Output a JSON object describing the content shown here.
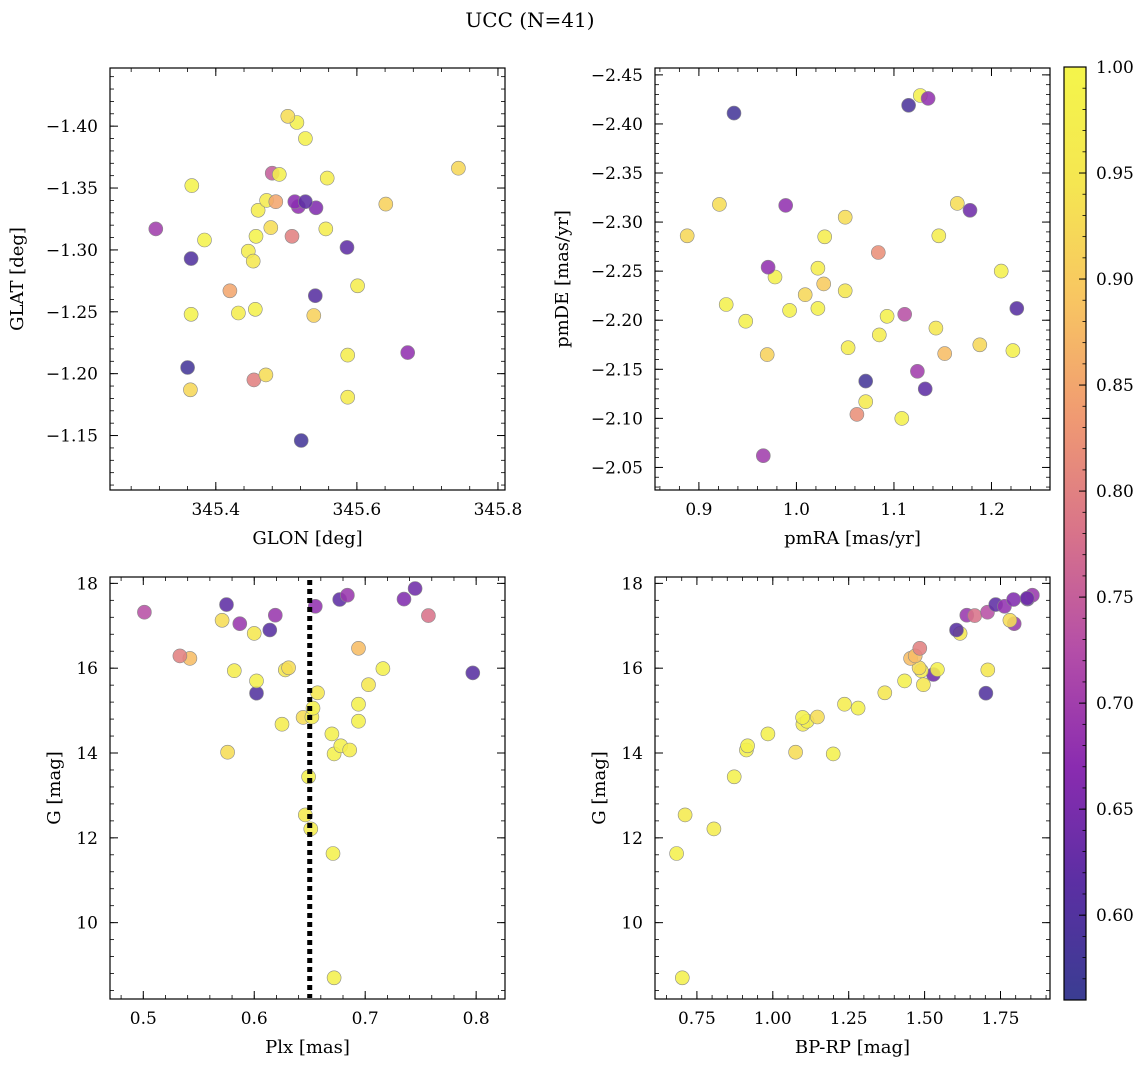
{
  "figure": {
    "title": "UCC (N=41)"
  },
  "colorbar": {
    "min": 0.56,
    "max": 1.0,
    "ticks": [
      0.6,
      0.65,
      0.7,
      0.75,
      0.8,
      0.85,
      0.9,
      0.95,
      1.0
    ],
    "tick_labels": [
      "0.60",
      "0.65",
      "0.70",
      "0.75",
      "0.80",
      "0.85",
      "0.90",
      "0.95",
      "1.00"
    ],
    "colormap": "plasma-like",
    "stops": [
      "#3a3d92",
      "#5b2fa3",
      "#8a2cb0",
      "#b44ea8",
      "#d8738a",
      "#f09a72",
      "#f8c562",
      "#f5e651",
      "#f4f54b"
    ]
  },
  "chart_data": [
    {
      "id": "radec",
      "type": "scatter",
      "xlabel": "GLON [deg]",
      "ylabel": "GLAT [deg]",
      "xlim": [
        345.25,
        345.81
      ],
      "ylim": [
        -1.447,
        -1.106
      ],
      "xticks": [
        345.4,
        345.6,
        345.8
      ],
      "xtick_labels": [
        "345.4",
        "345.6",
        "345.8"
      ],
      "yticks": [
        -1.15,
        -1.2,
        -1.25,
        -1.3,
        -1.35,
        -1.4
      ],
      "ytick_labels": [
        "−1.15",
        "−1.20",
        "−1.25",
        "−1.30",
        "−1.35",
        "−1.40"
      ],
      "points": [
        [
          345.521,
          -1.146,
          0.58
        ],
        [
          345.36,
          -1.205,
          0.58
        ],
        [
          345.364,
          -1.187,
          0.92
        ],
        [
          345.454,
          -1.195,
          0.8
        ],
        [
          345.471,
          -1.199,
          0.93
        ],
        [
          345.587,
          -1.181,
          0.96
        ],
        [
          345.672,
          -1.217,
          0.68
        ],
        [
          345.587,
          -1.215,
          0.97
        ],
        [
          345.365,
          -1.248,
          0.99
        ],
        [
          345.432,
          -1.249,
          0.97
        ],
        [
          345.456,
          -1.252,
          0.98
        ],
        [
          345.42,
          -1.267,
          0.85
        ],
        [
          345.539,
          -1.247,
          0.91
        ],
        [
          345.541,
          -1.263,
          0.61
        ],
        [
          345.601,
          -1.271,
          0.97
        ],
        [
          345.365,
          -1.293,
          0.6
        ],
        [
          345.384,
          -1.308,
          0.99
        ],
        [
          345.446,
          -1.299,
          0.97
        ],
        [
          345.453,
          -1.291,
          0.95
        ],
        [
          345.586,
          -1.302,
          0.62
        ],
        [
          345.315,
          -1.317,
          0.7
        ],
        [
          345.457,
          -1.311,
          0.99
        ],
        [
          345.508,
          -1.311,
          0.8
        ],
        [
          345.478,
          -1.318,
          0.93
        ],
        [
          345.517,
          -1.335,
          0.68
        ],
        [
          345.46,
          -1.332,
          0.97
        ],
        [
          345.542,
          -1.334,
          0.66
        ],
        [
          345.556,
          -1.317,
          0.97
        ],
        [
          345.641,
          -1.337,
          0.91
        ],
        [
          345.366,
          -1.352,
          0.99
        ],
        [
          345.472,
          -1.34,
          0.96
        ],
        [
          345.485,
          -1.339,
          0.85
        ],
        [
          345.512,
          -1.339,
          0.67
        ],
        [
          345.527,
          -1.339,
          0.62
        ],
        [
          345.48,
          -1.362,
          0.75
        ],
        [
          345.49,
          -1.361,
          0.98
        ],
        [
          345.558,
          -1.358,
          0.97
        ],
        [
          345.744,
          -1.366,
          0.92
        ],
        [
          345.527,
          -1.39,
          0.98
        ],
        [
          345.515,
          -1.403,
          0.98
        ],
        [
          345.502,
          -1.408,
          0.93
        ]
      ]
    },
    {
      "id": "pm",
      "type": "scatter",
      "xlabel": "pmRA [mas/yr]",
      "ylabel": "pmDE [mas/yr]",
      "xlim": [
        0.855,
        1.26
      ],
      "ylim": [
        -2.457,
        -2.027
      ],
      "xticks": [
        0.9,
        1.0,
        1.1,
        1.2
      ],
      "xtick_labels": [
        "0.9",
        "1.0",
        "1.1",
        "1.2"
      ],
      "yticks": [
        -2.05,
        -2.1,
        -2.15,
        -2.2,
        -2.25,
        -2.3,
        -2.35,
        -2.4,
        -2.45
      ],
      "ytick_labels": [
        "−2.05",
        "−2.10",
        "−2.15",
        "−2.20",
        "−2.25",
        "−2.30",
        "−2.35",
        "−2.40",
        "−2.45"
      ],
      "points": [
        [
          0.966,
          -2.062,
          0.7
        ],
        [
          1.108,
          -2.1,
          0.98
        ],
        [
          1.062,
          -2.104,
          0.82
        ],
        [
          1.071,
          -2.117,
          0.96
        ],
        [
          1.071,
          -2.138,
          0.58
        ],
        [
          1.132,
          -2.13,
          0.62
        ],
        [
          1.124,
          -2.148,
          0.7
        ],
        [
          0.97,
          -2.165,
          0.91
        ],
        [
          1.152,
          -2.166,
          0.88
        ],
        [
          1.053,
          -2.172,
          0.97
        ],
        [
          1.188,
          -2.175,
          0.92
        ],
        [
          1.222,
          -2.169,
          0.98
        ],
        [
          1.085,
          -2.185,
          0.97
        ],
        [
          1.143,
          -2.192,
          0.95
        ],
        [
          0.948,
          -2.199,
          0.98
        ],
        [
          1.093,
          -2.204,
          0.98
        ],
        [
          1.111,
          -2.206,
          0.73
        ],
        [
          1.226,
          -2.212,
          0.61
        ],
        [
          0.993,
          -2.21,
          0.98
        ],
        [
          1.022,
          -2.212,
          0.98
        ],
        [
          0.928,
          -2.216,
          0.98
        ],
        [
          1.009,
          -2.226,
          0.92
        ],
        [
          1.05,
          -2.23,
          0.95
        ],
        [
          1.028,
          -2.237,
          0.9
        ],
        [
          0.978,
          -2.244,
          0.98
        ],
        [
          0.971,
          -2.254,
          0.68
        ],
        [
          1.022,
          -2.253,
          0.97
        ],
        [
          1.21,
          -2.25,
          0.98
        ],
        [
          1.084,
          -2.269,
          0.82
        ],
        [
          0.888,
          -2.286,
          0.92
        ],
        [
          1.029,
          -2.285,
          0.97
        ],
        [
          1.146,
          -2.286,
          0.97
        ],
        [
          1.05,
          -2.305,
          0.93
        ],
        [
          0.921,
          -2.318,
          0.93
        ],
        [
          0.989,
          -2.317,
          0.68
        ],
        [
          1.165,
          -2.319,
          0.93
        ],
        [
          1.178,
          -2.312,
          0.64
        ],
        [
          0.936,
          -2.411,
          0.58
        ],
        [
          1.115,
          -2.419,
          0.59
        ],
        [
          1.127,
          -2.429,
          0.98
        ],
        [
          1.135,
          -2.426,
          0.68
        ]
      ]
    },
    {
      "id": "plx",
      "type": "scatter",
      "xlabel": "Plx [mas]",
      "ylabel": "G [mag]",
      "xlim": [
        0.47,
        0.826
      ],
      "ylim": [
        18.15,
        8.2
      ],
      "xticks": [
        0.5,
        0.6,
        0.7,
        0.8
      ],
      "xtick_labels": [
        "0.5",
        "0.6",
        "0.7",
        "0.8"
      ],
      "yticks": [
        10,
        12,
        14,
        16,
        18
      ],
      "ytick_labels": [
        "10",
        "12",
        "14",
        "16",
        "18"
      ],
      "vline": {
        "x": 0.65,
        "style": "dotted"
      },
      "points": [
        [
          0.672,
          8.7,
          0.98
        ],
        [
          0.671,
          11.63,
          0.98
        ],
        [
          0.651,
          12.21,
          0.97
        ],
        [
          0.646,
          12.54,
          0.96
        ],
        [
          0.649,
          13.44,
          0.98
        ],
        [
          0.576,
          14.02,
          0.93
        ],
        [
          0.672,
          13.98,
          0.98
        ],
        [
          0.678,
          14.17,
          0.98
        ],
        [
          0.686,
          14.07,
          0.97
        ],
        [
          0.67,
          14.45,
          0.98
        ],
        [
          0.625,
          14.68,
          0.97
        ],
        [
          0.694,
          14.75,
          0.98
        ],
        [
          0.644,
          14.84,
          0.93
        ],
        [
          0.652,
          14.85,
          0.97
        ],
        [
          0.653,
          15.06,
          0.98
        ],
        [
          0.694,
          15.15,
          0.98
        ],
        [
          0.657,
          15.42,
          0.95
        ],
        [
          0.602,
          15.41,
          0.6
        ],
        [
          0.703,
          15.61,
          0.95
        ],
        [
          0.602,
          15.7,
          0.98
        ],
        [
          0.582,
          15.94,
          0.97
        ],
        [
          0.628,
          15.96,
          0.95
        ],
        [
          0.631,
          16.01,
          0.93
        ],
        [
          0.716,
          15.99,
          0.98
        ],
        [
          0.797,
          15.89,
          0.61
        ],
        [
          0.542,
          16.23,
          0.88
        ],
        [
          0.533,
          16.29,
          0.8
        ],
        [
          0.694,
          16.47,
          0.88
        ],
        [
          0.6,
          16.82,
          0.95
        ],
        [
          0.614,
          16.9,
          0.61
        ],
        [
          0.587,
          17.05,
          0.69
        ],
        [
          0.571,
          17.13,
          0.93
        ],
        [
          0.619,
          17.25,
          0.69
        ],
        [
          0.757,
          17.24,
          0.78
        ],
        [
          0.501,
          17.32,
          0.73
        ],
        [
          0.575,
          17.5,
          0.62
        ],
        [
          0.655,
          17.46,
          0.68
        ],
        [
          0.677,
          17.62,
          0.62
        ],
        [
          0.684,
          17.72,
          0.69
        ],
        [
          0.735,
          17.63,
          0.66
        ],
        [
          0.745,
          17.88,
          0.64
        ]
      ]
    },
    {
      "id": "cmd",
      "type": "scatter",
      "xlabel": "BP-RP [mag]",
      "ylabel": "G [mag]",
      "xlim": [
        0.612,
        1.913
      ],
      "ylim": [
        18.15,
        8.2
      ],
      "xticks": [
        0.75,
        1.0,
        1.25,
        1.5,
        1.75
      ],
      "xtick_labels": [
        "0.75",
        "1.00",
        "1.25",
        "1.50",
        "1.75"
      ],
      "yticks": [
        10,
        12,
        14,
        16,
        18
      ],
      "ytick_labels": [
        "10",
        "12",
        "14",
        "16",
        "18"
      ],
      "points": [
        [
          0.702,
          8.7,
          0.98
        ],
        [
          0.683,
          11.63,
          0.98
        ],
        [
          0.806,
          12.21,
          0.97
        ],
        [
          0.711,
          12.54,
          0.96
        ],
        [
          0.873,
          13.44,
          0.98
        ],
        [
          1.075,
          14.02,
          0.93
        ],
        [
          1.199,
          13.98,
          0.98
        ],
        [
          0.913,
          14.07,
          0.98
        ],
        [
          0.917,
          14.17,
          0.98
        ],
        [
          0.984,
          14.45,
          0.98
        ],
        [
          1.099,
          14.68,
          0.97
        ],
        [
          1.113,
          14.75,
          0.98
        ],
        [
          1.098,
          14.84,
          0.98
        ],
        [
          1.147,
          14.85,
          0.93
        ],
        [
          1.281,
          15.06,
          0.98
        ],
        [
          1.236,
          15.15,
          0.97
        ],
        [
          1.369,
          15.42,
          0.95
        ],
        [
          1.702,
          15.41,
          0.6
        ],
        [
          1.434,
          15.7,
          0.98
        ],
        [
          1.496,
          15.61,
          0.95
        ],
        [
          1.529,
          15.85,
          0.64
        ],
        [
          1.542,
          15.97,
          0.98
        ],
        [
          1.489,
          15.94,
          0.97
        ],
        [
          1.708,
          15.96,
          0.95
        ],
        [
          1.482,
          16.01,
          0.93
        ],
        [
          1.454,
          16.23,
          0.88
        ],
        [
          1.469,
          16.29,
          0.88
        ],
        [
          1.484,
          16.47,
          0.8
        ],
        [
          1.617,
          16.82,
          0.95
        ],
        [
          1.605,
          16.9,
          0.61
        ],
        [
          1.795,
          17.05,
          0.69
        ],
        [
          1.781,
          17.13,
          0.93
        ],
        [
          1.639,
          17.25,
          0.69
        ],
        [
          1.665,
          17.24,
          0.78
        ],
        [
          1.707,
          17.32,
          0.73
        ],
        [
          1.734,
          17.5,
          0.62
        ],
        [
          1.763,
          17.46,
          0.68
        ],
        [
          1.793,
          17.62,
          0.66
        ],
        [
          1.839,
          17.63,
          0.62
        ],
        [
          1.855,
          17.72,
          0.69
        ],
        [
          1.838,
          17.65,
          0.64
        ]
      ]
    }
  ]
}
